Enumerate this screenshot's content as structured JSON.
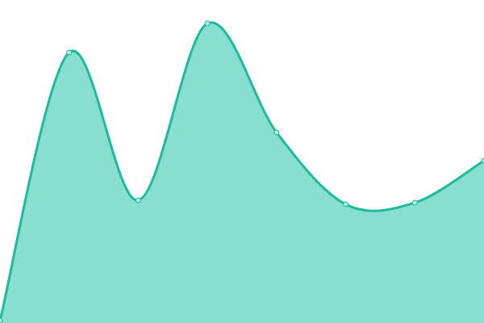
{
  "chart_data": {
    "type": "area",
    "title": "",
    "xlabel": "",
    "ylabel": "",
    "x": [
      0,
      1,
      2,
      3,
      4,
      5,
      6,
      7
    ],
    "series": [
      {
        "values": [
          3,
          335,
          152,
          371,
          236,
          147,
          149,
          201
        ]
      }
    ],
    "ylim": [
      0,
      400
    ],
    "grid": false,
    "axes_visible": false,
    "legend": "none",
    "colors": {
      "line": "#1abc9c",
      "fill": "#88dfcf",
      "marker_fill": "#b5ece1"
    }
  }
}
